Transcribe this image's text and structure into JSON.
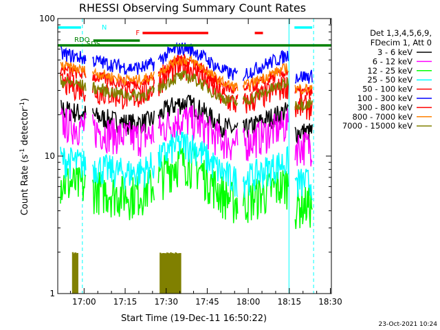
{
  "chart_data": {
    "type": "line",
    "title": "RHESSI Observing Summary Count Rates",
    "xlabel": "Start Time (19-Dec-11 16:50:22)",
    "ylabel_parts": [
      "Count Rate (s",
      "-1",
      " detector",
      "-1",
      ")"
    ],
    "ylog": true,
    "ylim": [
      1,
      100
    ],
    "xlim_min": [
      0,
      100
    ],
    "x_ticks": [
      {
        "t": 9.633,
        "label": "17:00"
      },
      {
        "t": 24.633,
        "label": "17:15"
      },
      {
        "t": 39.633,
        "label": "17:30"
      },
      {
        "t": 54.633,
        "label": "17:45"
      },
      {
        "t": 69.633,
        "label": "18:00"
      },
      {
        "t": 84.633,
        "label": "18:15"
      },
      {
        "t": 99.633,
        "label": "18:30"
      }
    ],
    "y_ticks": [
      {
        "v": 1,
        "label": "1"
      },
      {
        "v": 10,
        "label": "10"
      },
      {
        "v": 100,
        "label": "100"
      }
    ],
    "legend_header": [
      "Det 1,3,4,5,6,9,",
      "FDecim 1, Att 0"
    ],
    "series": [
      {
        "name": "3 - 6 keV",
        "color": "#000000",
        "base": 15,
        "amp": 0.62,
        "noise": 0.06
      },
      {
        "name": "6 - 12 keV",
        "color": "#ff00ff",
        "base": 12,
        "amp": 0.55,
        "noise": 0.1
      },
      {
        "name": "12 - 25 keV",
        "color": "#00ff00",
        "base": 4.5,
        "amp": 1.05,
        "noise": 0.12
      },
      {
        "name": "25 - 50 keV",
        "color": "#00ffff",
        "base": 6.5,
        "amp": 0.9,
        "noise": 0.09
      },
      {
        "name": "50 - 100 keV",
        "color": "#ff0000",
        "base": 23,
        "amp": 0.95,
        "noise": 0.07
      },
      {
        "name": "100 - 300 keV",
        "color": "#0000ff",
        "base": 38,
        "amp": 0.6,
        "noise": 0.04
      },
      {
        "name": "300 - 800 keV",
        "color": "#ff0000",
        "base": 29,
        "amp": 0.72,
        "noise": 0.035
      },
      {
        "name": "800 - 7000 keV",
        "color": "#ff8000",
        "base": 31,
        "amp": 0.62,
        "noise": 0.03
      },
      {
        "name": "7000 - 15000 keV",
        "color": "#808000",
        "base": 24,
        "amp": 0.58,
        "noise": 0.035
      }
    ],
    "saa_bars": [
      {
        "t0": 5.5,
        "t1": 7.4
      },
      {
        "t0": 37.5,
        "t1": 45.0
      }
    ],
    "flags": [
      {
        "label": "N",
        "color": "#00ffff",
        "segments": [
          [
            0,
            8.5
          ],
          [
            86.5,
            93
          ]
        ],
        "level": "top"
      },
      {
        "label": "F",
        "color": "#ff0000",
        "segments": [
          [
            31,
            55
          ],
          [
            72,
            75
          ]
        ],
        "level": "upper"
      },
      {
        "label": "RDO",
        "color": "#008000",
        "segments": [
          [
            0,
            100
          ]
        ],
        "level": "line"
      },
      {
        "label": "SDS",
        "color": "#008000",
        "segments": [
          [
            13,
            30
          ]
        ],
        "level": "sub"
      }
    ],
    "gaps": [
      {
        "t0": 10.5,
        "t1": 12.5
      },
      {
        "t0": 35.5,
        "t1": 36.5
      },
      {
        "t0": 66.0,
        "t1": 67.5
      },
      {
        "t0": 84.5,
        "t1": 86.5
      }
    ],
    "vlines": [
      {
        "t": 0.0,
        "color": "#00ffff"
      },
      {
        "t": 9.0,
        "color": "#00ffff",
        "dash": true
      },
      {
        "t": 84.5,
        "color": "#00ffff"
      },
      {
        "t": 93.5,
        "color": "#00ffff",
        "dash": true
      }
    ]
  },
  "footer_date": "23-Oct-2021 10:24"
}
